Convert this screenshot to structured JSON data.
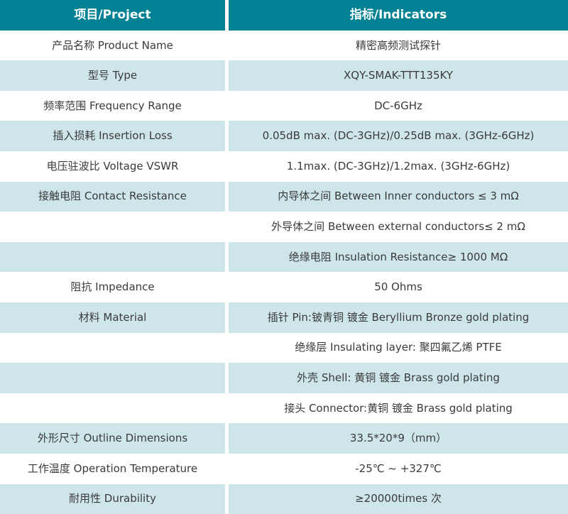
{
  "header": {
    "project": "项目/Project",
    "indicators": "指标/Indicators"
  },
  "rows": [
    {
      "project": "产品名称 Product Name",
      "indicator": "精密高频测试探针"
    },
    {
      "project": "型号 Type",
      "indicator": "XQY-SMAK-TTT135KY"
    },
    {
      "project": "频率范围 Frequency Range",
      "indicator": "DC-6GHz"
    },
    {
      "project": "插入损耗 Insertion Loss",
      "indicator": "0.05dB max. (DC-3GHz)/0.25dB max. (3GHz-6GHz)"
    },
    {
      "project": "电压驻波比 Voltage VSWR",
      "indicator": "1.1max. (DC-3GHz)/1.2max. (3GHz-6GHz)"
    },
    {
      "project": "接触电阻 Contact Resistance",
      "indicator": "内导体之间 Between Inner conductors ≤ 3 mΩ"
    },
    {
      "project": "",
      "indicator": "外导体之间 Between external conductors≤ 2 mΩ"
    },
    {
      "project": "",
      "indicator": "绝缘电阻 Insulation Resistance≥ 1000 MΩ"
    },
    {
      "project": "阻抗 Impedance",
      "indicator": "50 Ohms"
    },
    {
      "project": "材料 Material",
      "indicator": "插针 Pin:铍青铜 镀金 Beryllium Bronze gold plating"
    },
    {
      "project": "",
      "indicator": "绝缘层 Insulating layer: 聚四氟乙烯 PTFE"
    },
    {
      "project": "",
      "indicator": "外壳 Shell: 黄铜 镀金 Brass gold plating"
    },
    {
      "project": "",
      "indicator": "接头 Connector:黄铜 镀金 Brass gold plating"
    },
    {
      "project": "外形尺寸 Outline Dimensions",
      "indicator": "33.5*20*9（mm）"
    },
    {
      "project": "工作温度 Operation Temperature",
      "indicator": "-25℃ ~ +327℃"
    },
    {
      "project": "耐用性 Durability",
      "indicator": "≥20000times 次"
    }
  ],
  "colors": {
    "header_bg": "#008294",
    "header_text": "#ffffff",
    "shaded_row_bg": "#cee6ea",
    "plain_row_bg": "#ffffff",
    "body_text": "#3a3a3a"
  }
}
